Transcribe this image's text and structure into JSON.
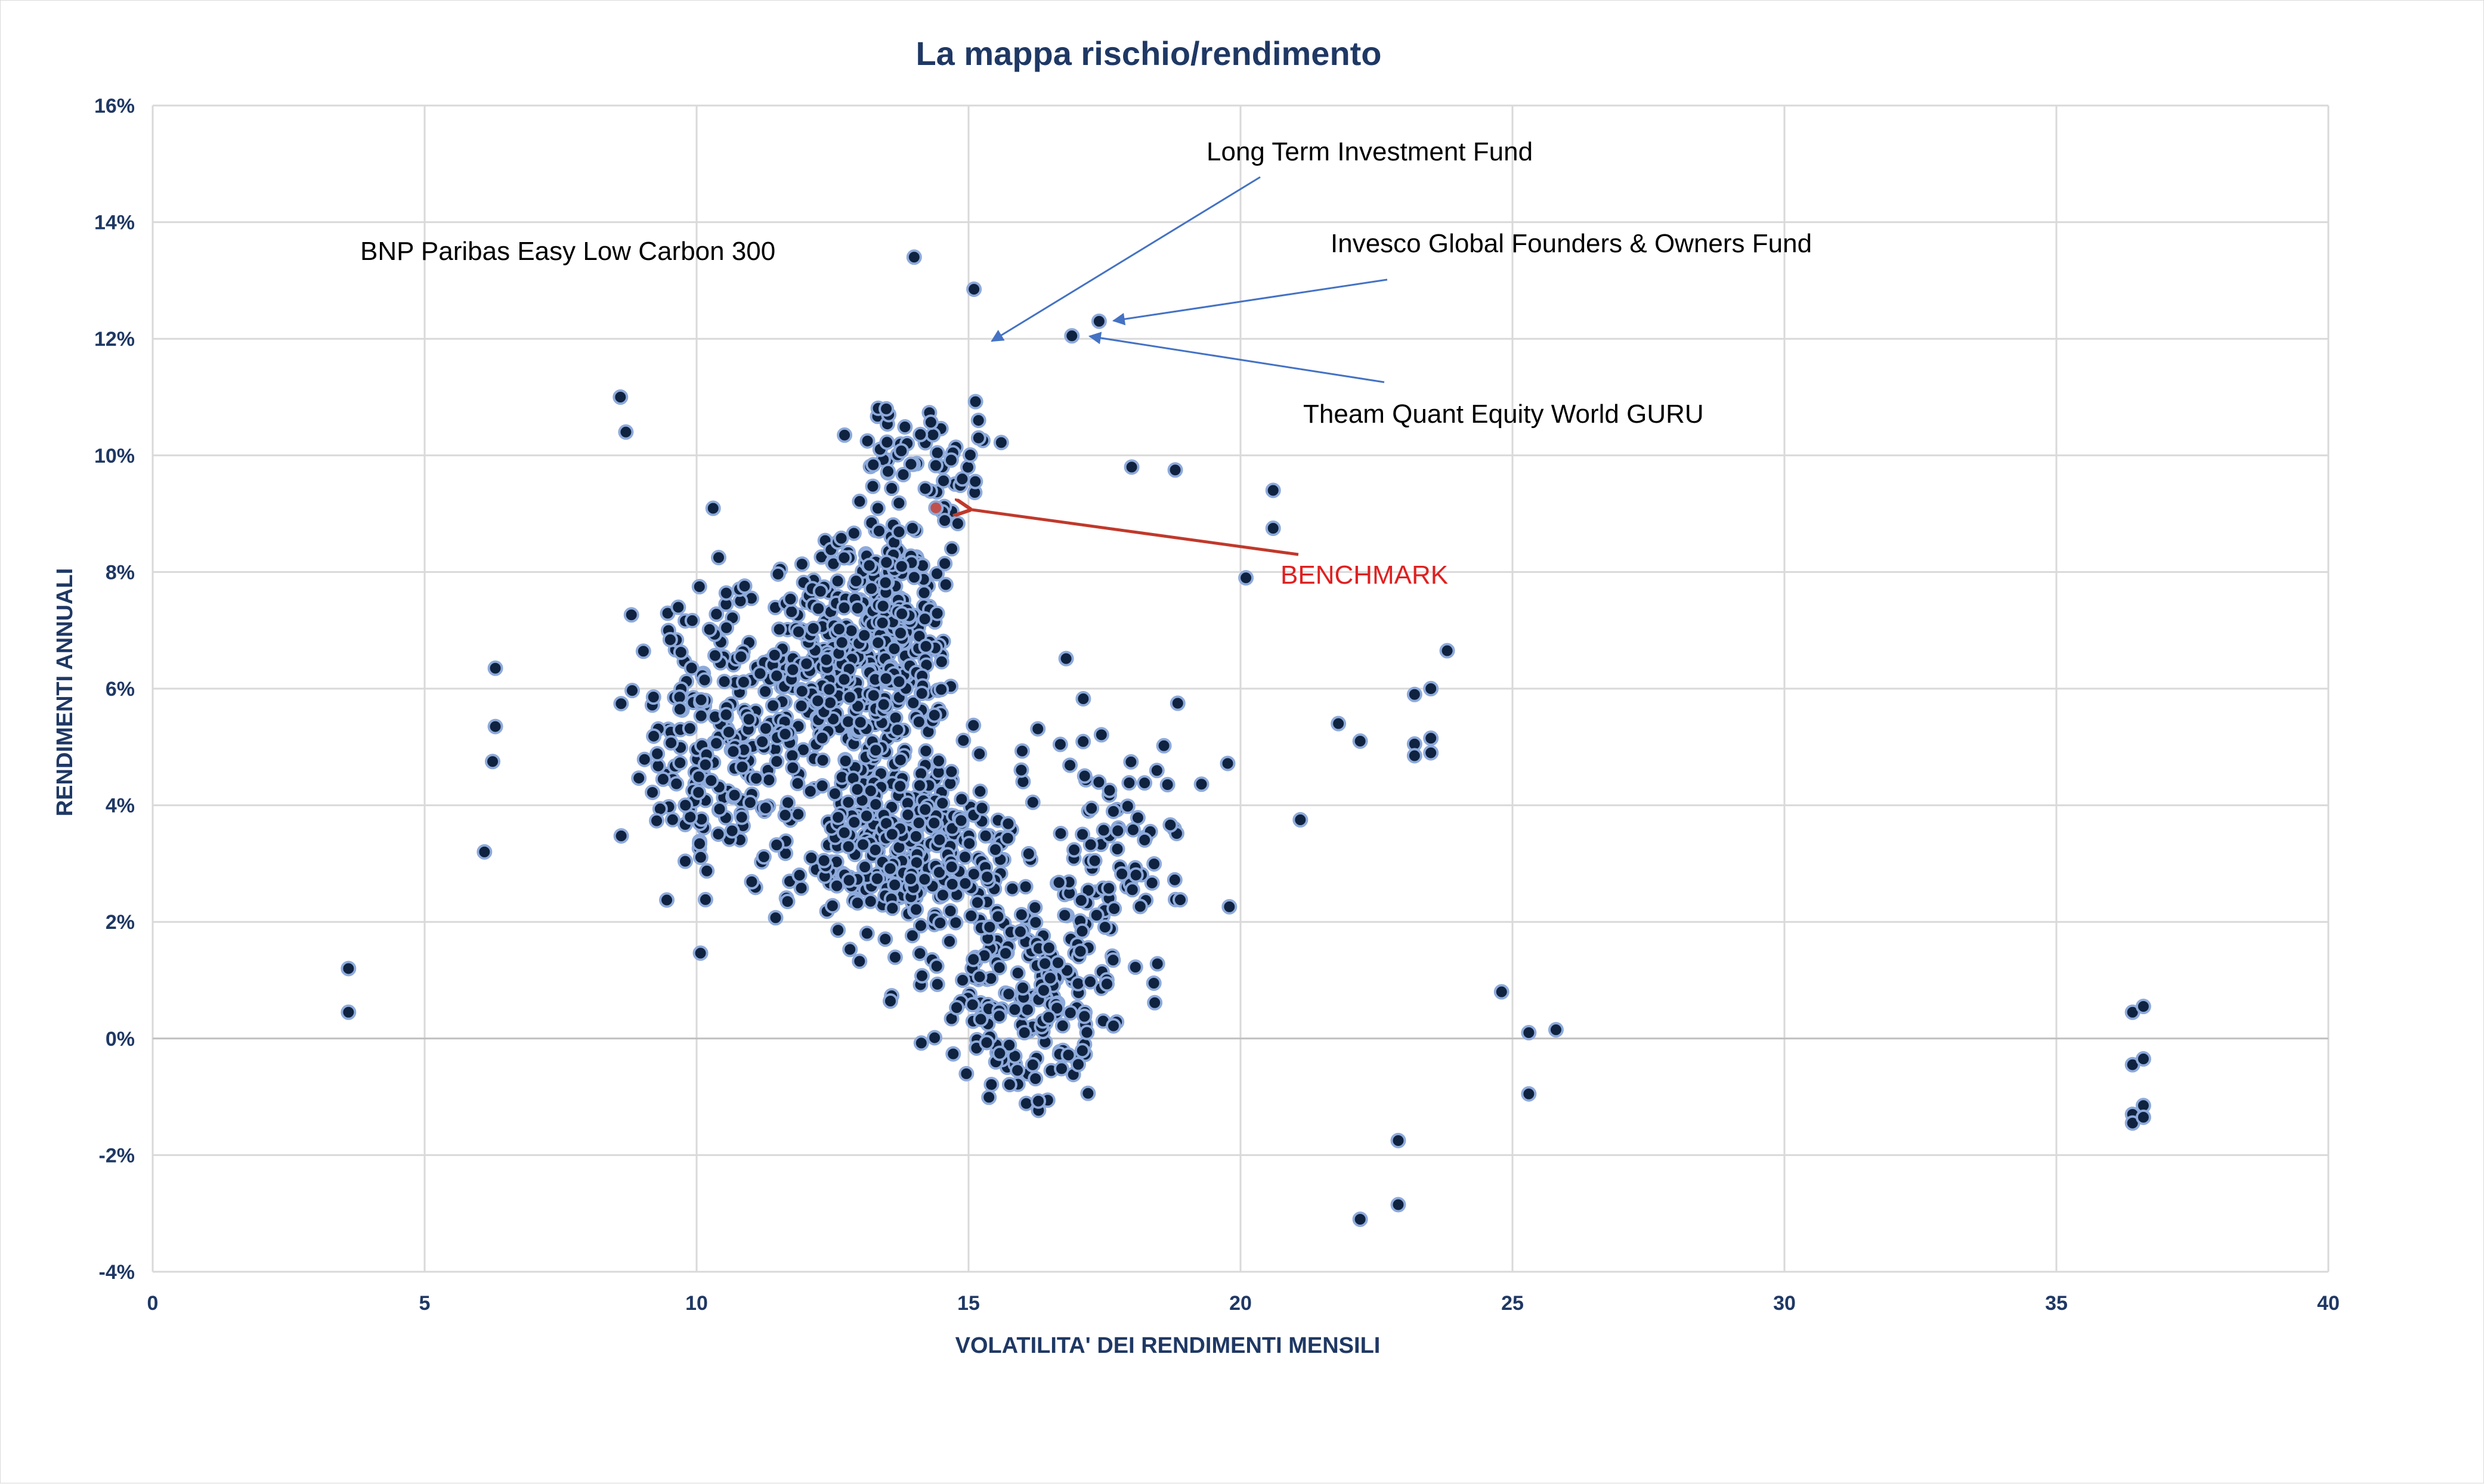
{
  "chart_data": {
    "type": "scatter",
    "title": "La mappa rischio/rendimento",
    "xlabel": "VOLATILITA' DEI RENDIMENTI MENSILI",
    "ylabel": "RENDIMENTI ANNUALI",
    "xlim": [
      0,
      40
    ],
    "ylim": [
      -4,
      16
    ],
    "x_ticks": [
      "0",
      "5",
      "10",
      "15",
      "20",
      "25",
      "30",
      "35",
      "40"
    ],
    "y_ticks": [
      "-4%",
      "-2%",
      "0%",
      "2%",
      "4%",
      "6%",
      "8%",
      "10%",
      "12%",
      "14%",
      "16%"
    ],
    "grid": true,
    "colors": {
      "points": "#0f2340",
      "point_edge": "#8eaadb",
      "benchmark": "#c0504d",
      "arrow_blue": "#4472c4",
      "arrow_red": "#c0392b",
      "title": "#1f3864"
    },
    "annotations": [
      {
        "id": "bnp",
        "text": "BNP Paribas Easy Low Carbon 300"
      },
      {
        "id": "ltif",
        "text": "Long Term Investment Fund",
        "points_to": [
          15.3,
          11.9
        ]
      },
      {
        "id": "invesco",
        "text": "Invesco Global Founders & Owners Fund",
        "points_to": [
          17.7,
          12.3
        ]
      },
      {
        "id": "theam",
        "text": "Theam Quant Equity World GURU",
        "points_to": [
          17.2,
          12.05
        ]
      },
      {
        "id": "benchmark",
        "text": "BENCHMARK",
        "points_to": [
          14.4,
          9.15
        ]
      }
    ],
    "benchmark": {
      "x": 14.4,
      "y": 9.1
    },
    "labeled_points": [
      {
        "x": 14.0,
        "y": 13.4
      },
      {
        "x": 15.1,
        "y": 12.85
      },
      {
        "x": 17.4,
        "y": 12.3
      },
      {
        "x": 16.9,
        "y": 12.05
      }
    ],
    "outliers": [
      {
        "x": 3.6,
        "y": 1.2
      },
      {
        "x": 3.6,
        "y": 0.45
      },
      {
        "x": 6.3,
        "y": 6.35
      },
      {
        "x": 6.3,
        "y": 5.35
      },
      {
        "x": 6.25,
        "y": 4.75
      },
      {
        "x": 6.1,
        "y": 3.2
      },
      {
        "x": 8.6,
        "y": 11.0
      },
      {
        "x": 8.7,
        "y": 10.4
      },
      {
        "x": 18.0,
        "y": 9.8
      },
      {
        "x": 18.8,
        "y": 9.75
      },
      {
        "x": 20.6,
        "y": 9.4
      },
      {
        "x": 20.6,
        "y": 8.75
      },
      {
        "x": 20.1,
        "y": 7.9
      },
      {
        "x": 23.8,
        "y": 6.65
      },
      {
        "x": 23.5,
        "y": 6.0
      },
      {
        "x": 23.2,
        "y": 5.9
      },
      {
        "x": 22.2,
        "y": 5.1
      },
      {
        "x": 21.8,
        "y": 5.4
      },
      {
        "x": 23.2,
        "y": 5.05
      },
      {
        "x": 23.5,
        "y": 5.15
      },
      {
        "x": 23.2,
        "y": 4.85
      },
      {
        "x": 23.5,
        "y": 4.9
      },
      {
        "x": 21.1,
        "y": 3.75
      },
      {
        "x": 24.8,
        "y": 0.8
      },
      {
        "x": 25.3,
        "y": 0.1
      },
      {
        "x": 25.8,
        "y": 0.15
      },
      {
        "x": 25.3,
        "y": -0.95
      },
      {
        "x": 22.9,
        "y": -1.75
      },
      {
        "x": 22.9,
        "y": -2.85
      },
      {
        "x": 22.2,
        "y": -3.1
      },
      {
        "x": 36.4,
        "y": 0.45
      },
      {
        "x": 36.6,
        "y": 0.55
      },
      {
        "x": 36.4,
        "y": -0.45
      },
      {
        "x": 36.6,
        "y": -0.35
      },
      {
        "x": 36.4,
        "y": -1.3
      },
      {
        "x": 36.6,
        "y": -1.15
      },
      {
        "x": 36.4,
        "y": -1.45
      },
      {
        "x": 36.6,
        "y": -1.35
      }
    ],
    "clusters": [
      {
        "cx": 12.6,
        "cy": 6.2,
        "sx": 1.7,
        "sy": 1.6,
        "n": 330
      },
      {
        "cx": 13.6,
        "cy": 7.6,
        "sx": 1.1,
        "sy": 1.3,
        "n": 150
      },
      {
        "cx": 13.8,
        "cy": 3.3,
        "sx": 1.8,
        "sy": 1.6,
        "n": 330
      },
      {
        "cx": 16.2,
        "cy": 0.8,
        "sx": 1.9,
        "sy": 1.8,
        "n": 200
      },
      {
        "cx": 10.3,
        "cy": 5.0,
        "sx": 1.2,
        "sy": 2.4,
        "n": 180
      },
      {
        "cx": 17.6,
        "cy": 3.5,
        "sx": 1.8,
        "sy": 2.0,
        "n": 90
      },
      {
        "cx": 14.2,
        "cy": 10.0,
        "sx": 1.4,
        "sy": 0.9,
        "n": 60
      }
    ]
  }
}
